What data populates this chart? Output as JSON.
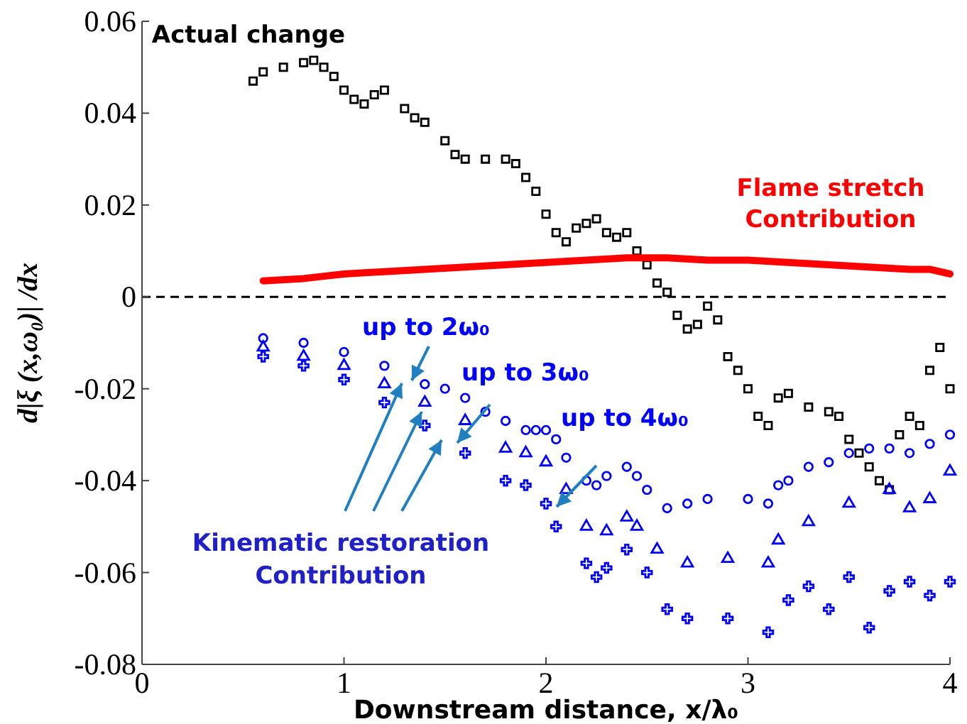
{
  "chart_data": {
    "type": "scatter",
    "xlabel": "Downstream distance,  x/λ₀",
    "ylabel": "d|ξ (x,ω₀)| /dx",
    "xlim": [
      0,
      4
    ],
    "ylim": [
      -0.08,
      0.06
    ],
    "xticks": [
      0,
      1,
      2,
      3,
      4
    ],
    "yticks": [
      -0.08,
      -0.06,
      -0.04,
      -0.02,
      0,
      0.02,
      0.04,
      0.06
    ],
    "grid": false,
    "ref_lines": [
      {
        "axis": "y",
        "value": 0,
        "color": "#000000",
        "line_style": "dashed"
      }
    ],
    "annotations": [
      "Kinematic restoration Contribution"
    ],
    "series": [
      {
        "name": "Actual change",
        "color": "#000000",
        "marker": "square",
        "x": [
          0.55,
          0.6,
          0.7,
          0.8,
          0.85,
          0.9,
          0.95,
          1.0,
          1.05,
          1.1,
          1.15,
          1.2,
          1.3,
          1.35,
          1.4,
          1.5,
          1.55,
          1.6,
          1.7,
          1.8,
          1.85,
          1.9,
          1.95,
          2.0,
          2.05,
          2.1,
          2.15,
          2.2,
          2.25,
          2.3,
          2.35,
          2.4,
          2.45,
          2.5,
          2.55,
          2.6,
          2.65,
          2.7,
          2.75,
          2.8,
          2.85,
          2.9,
          2.95,
          3.0,
          3.05,
          3.1,
          3.15,
          3.2,
          3.3,
          3.4,
          3.45,
          3.5,
          3.55,
          3.6,
          3.65,
          3.7,
          3.75,
          3.8,
          3.85,
          3.9,
          3.95,
          4.0
        ],
        "values": [
          0.047,
          0.049,
          0.05,
          0.051,
          0.0515,
          0.05,
          0.048,
          0.045,
          0.043,
          0.042,
          0.044,
          0.045,
          0.041,
          0.039,
          0.038,
          0.034,
          0.031,
          0.03,
          0.03,
          0.03,
          0.029,
          0.026,
          0.023,
          0.018,
          0.014,
          0.012,
          0.015,
          0.016,
          0.017,
          0.014,
          0.013,
          0.014,
          0.01,
          0.007,
          0.003,
          0.001,
          -0.004,
          -0.007,
          -0.006,
          -0.002,
          -0.005,
          -0.013,
          -0.016,
          -0.02,
          -0.026,
          -0.028,
          -0.022,
          -0.021,
          -0.024,
          -0.025,
          -0.026,
          -0.031,
          -0.034,
          -0.037,
          -0.04,
          -0.042,
          -0.03,
          -0.026,
          -0.028,
          -0.016,
          -0.011,
          -0.02
        ]
      },
      {
        "name": "Flame stretch Contribution",
        "color": "#ff0000",
        "type": "line",
        "marker": "none",
        "x": [
          0.6,
          0.8,
          1.0,
          1.2,
          1.4,
          1.6,
          1.8,
          2.0,
          2.2,
          2.4,
          2.6,
          2.8,
          3.0,
          3.2,
          3.4,
          3.6,
          3.8,
          3.9,
          4.0
        ],
        "values": [
          0.0035,
          0.004,
          0.005,
          0.0055,
          0.006,
          0.0065,
          0.007,
          0.0075,
          0.008,
          0.0085,
          0.0085,
          0.008,
          0.008,
          0.0075,
          0.007,
          0.0065,
          0.006,
          0.006,
          0.005
        ]
      },
      {
        "name": "up to 2ω₀",
        "color": "#0000ff",
        "marker": "circle",
        "x": [
          0.6,
          0.8,
          1.0,
          1.2,
          1.4,
          1.5,
          1.6,
          1.7,
          1.8,
          1.9,
          1.95,
          2.0,
          2.05,
          2.1,
          2.2,
          2.25,
          2.3,
          2.4,
          2.45,
          2.5,
          2.6,
          2.7,
          2.8,
          3.0,
          3.1,
          3.15,
          3.2,
          3.3,
          3.4,
          3.5,
          3.6,
          3.7,
          3.8,
          3.9,
          4.0
        ],
        "values": [
          -0.009,
          -0.01,
          -0.012,
          -0.015,
          -0.019,
          -0.02,
          -0.022,
          -0.025,
          -0.027,
          -0.029,
          -0.029,
          -0.029,
          -0.031,
          -0.035,
          -0.04,
          -0.041,
          -0.039,
          -0.037,
          -0.039,
          -0.042,
          -0.046,
          -0.045,
          -0.044,
          -0.044,
          -0.045,
          -0.041,
          -0.04,
          -0.037,
          -0.036,
          -0.034,
          -0.033,
          -0.033,
          -0.034,
          -0.032,
          -0.03
        ]
      },
      {
        "name": "up to 3ω₀",
        "color": "#0000ff",
        "marker": "triangle",
        "x": [
          0.6,
          0.8,
          1.0,
          1.2,
          1.4,
          1.6,
          1.8,
          1.9,
          2.0,
          2.1,
          2.2,
          2.3,
          2.4,
          2.45,
          2.55,
          2.7,
          2.9,
          3.1,
          3.15,
          3.3,
          3.5,
          3.7,
          3.8,
          3.9,
          4.0
        ],
        "values": [
          -0.011,
          -0.013,
          -0.015,
          -0.019,
          -0.023,
          -0.027,
          -0.033,
          -0.034,
          -0.036,
          -0.042,
          -0.05,
          -0.051,
          -0.048,
          -0.05,
          -0.055,
          -0.058,
          -0.057,
          -0.058,
          -0.053,
          -0.049,
          -0.045,
          -0.042,
          -0.046,
          -0.044,
          -0.038
        ]
      },
      {
        "name": "up to 4ω₀",
        "color": "#0000ff",
        "marker": "cross",
        "x": [
          0.6,
          0.8,
          1.0,
          1.2,
          1.4,
          1.6,
          1.8,
          1.9,
          2.0,
          2.05,
          2.2,
          2.25,
          2.3,
          2.4,
          2.5,
          2.6,
          2.7,
          2.9,
          3.1,
          3.2,
          3.3,
          3.4,
          3.5,
          3.6,
          3.7,
          3.8,
          3.9,
          4.0
        ],
        "values": [
          -0.013,
          -0.015,
          -0.018,
          -0.023,
          -0.028,
          -0.034,
          -0.04,
          -0.041,
          -0.045,
          -0.05,
          -0.058,
          -0.061,
          -0.059,
          -0.055,
          -0.06,
          -0.068,
          -0.07,
          -0.07,
          -0.073,
          -0.066,
          -0.063,
          -0.068,
          -0.061,
          -0.072,
          -0.064,
          -0.062,
          -0.065,
          -0.062
        ]
      }
    ]
  }
}
